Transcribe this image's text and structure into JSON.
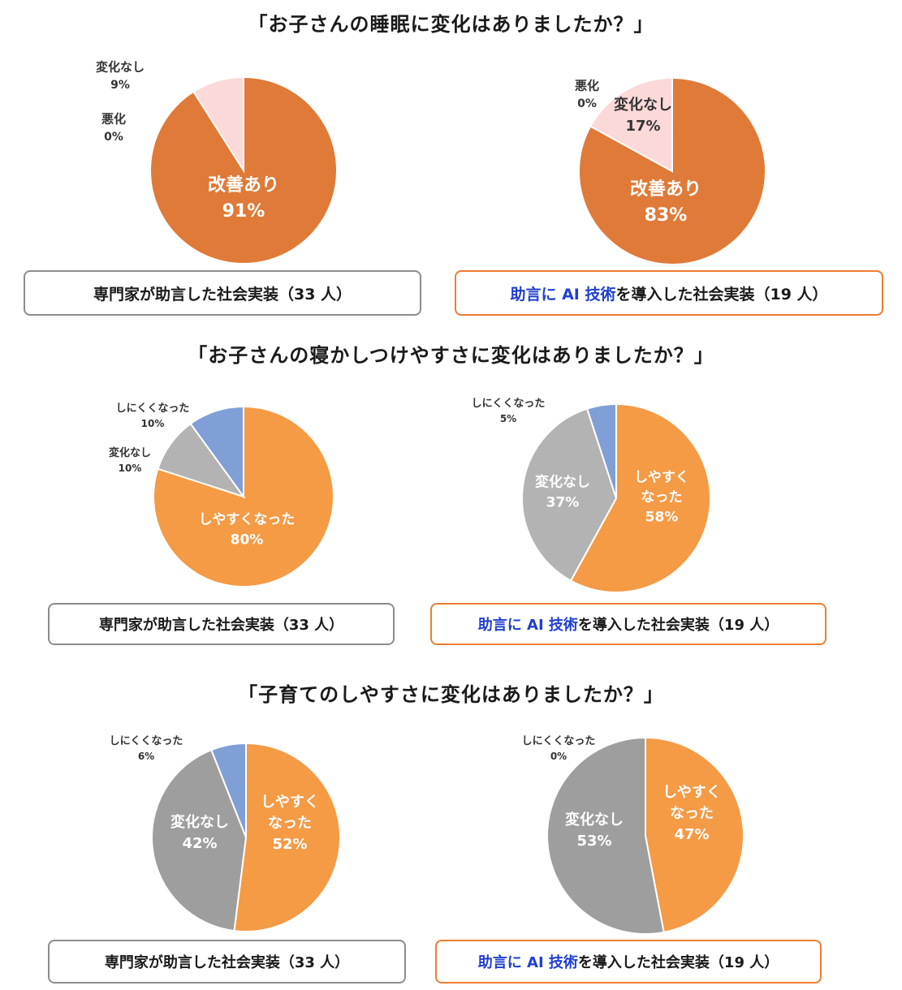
{
  "sections": [
    {
      "title": "「お子さんの睡眠に変化はありましたか？」"
    },
    {
      "title": "「お子さんの寝かしつけやすさに変化はありましたか？」"
    },
    {
      "title": "「子育てのしやすさに変化はありましたか？」"
    }
  ],
  "captions": {
    "expert": "専門家が助言した社会実装（33 人）",
    "ai_highlight": "助言に AI 技術",
    "ai_rest": "を導入した社会実装（19 人）"
  },
  "chart_data": [
    {
      "type": "pie",
      "section": "「お子さんの睡眠に変化はありましたか？」",
      "group": "専門家が助言した社会実装（33 人）",
      "slices": [
        {
          "label": "改善あり",
          "pct_label": "91%",
          "value": 91,
          "color": "#e07a38"
        },
        {
          "label": "悪化",
          "pct_label": "0%",
          "value": 0,
          "color": "#f4b6a4"
        },
        {
          "label": "変化なし",
          "pct_label": "9%",
          "value": 9,
          "color": "#fbd9d9"
        }
      ]
    },
    {
      "type": "pie",
      "section": "「お子さんの睡眠に変化はありましたか？」",
      "group": "助言に AI 技術を導入した社会実装（19 人）",
      "slices": [
        {
          "label": "改善あり",
          "pct_label": "83%",
          "value": 83,
          "color": "#e07a38"
        },
        {
          "label": "悪化",
          "pct_label": "0%",
          "value": 0,
          "color": "#f4b6a4"
        },
        {
          "label": "変化なし",
          "pct_label": "17%",
          "value": 17,
          "color": "#fbd9d9"
        }
      ]
    },
    {
      "type": "pie",
      "section": "「お子さんの寝かしつけやすさに変化はありましたか？」",
      "group": "専門家が助言した社会実装（33 人）",
      "slices": [
        {
          "label": "しやすくなった",
          "pct_label": "80%",
          "value": 80,
          "color": "#f59a45"
        },
        {
          "label": "変化なし",
          "pct_label": "10%",
          "value": 10,
          "color": "#b3b3b3"
        },
        {
          "label": "しにくくなった",
          "pct_label": "10%",
          "value": 10,
          "color": "#7f9fd6"
        }
      ]
    },
    {
      "type": "pie",
      "section": "「お子さんの寝かしつけやすさに変化はありましたか？」",
      "group": "助言に AI 技術を導入した社会実装（19 人）",
      "slices": [
        {
          "label": "しやすく\nなった",
          "pct_label": "58%",
          "value": 58,
          "color": "#f59a45"
        },
        {
          "label": "変化なし",
          "pct_label": "37%",
          "value": 37,
          "color": "#b3b3b3"
        },
        {
          "label": "しにくくなった",
          "pct_label": "5%",
          "value": 5,
          "color": "#7f9fd6"
        }
      ]
    },
    {
      "type": "pie",
      "section": "「子育てのしやすさに変化はありましたか？」",
      "group": "専門家が助言した社会実装（33 人）",
      "slices": [
        {
          "label": "しやすく\nなった",
          "pct_label": "52%",
          "value": 52,
          "color": "#f59a45"
        },
        {
          "label": "変化なし",
          "pct_label": "42%",
          "value": 42,
          "color": "#9e9e9e"
        },
        {
          "label": "しにくくなった",
          "pct_label": "6%",
          "value": 6,
          "color": "#7f9fd6"
        }
      ]
    },
    {
      "type": "pie",
      "section": "「子育てのしやすさに変化はありましたか？」",
      "group": "助言に AI 技術を導入した社会実装（19 人）",
      "slices": [
        {
          "label": "しやすく\nなった",
          "pct_label": "47%",
          "value": 47,
          "color": "#f59a45"
        },
        {
          "label": "変化なし",
          "pct_label": "53%",
          "value": 53,
          "color": "#9e9e9e"
        },
        {
          "label": "しにくくなった",
          "pct_label": "0%",
          "value": 0,
          "color": "#7f9fd6"
        }
      ]
    }
  ]
}
